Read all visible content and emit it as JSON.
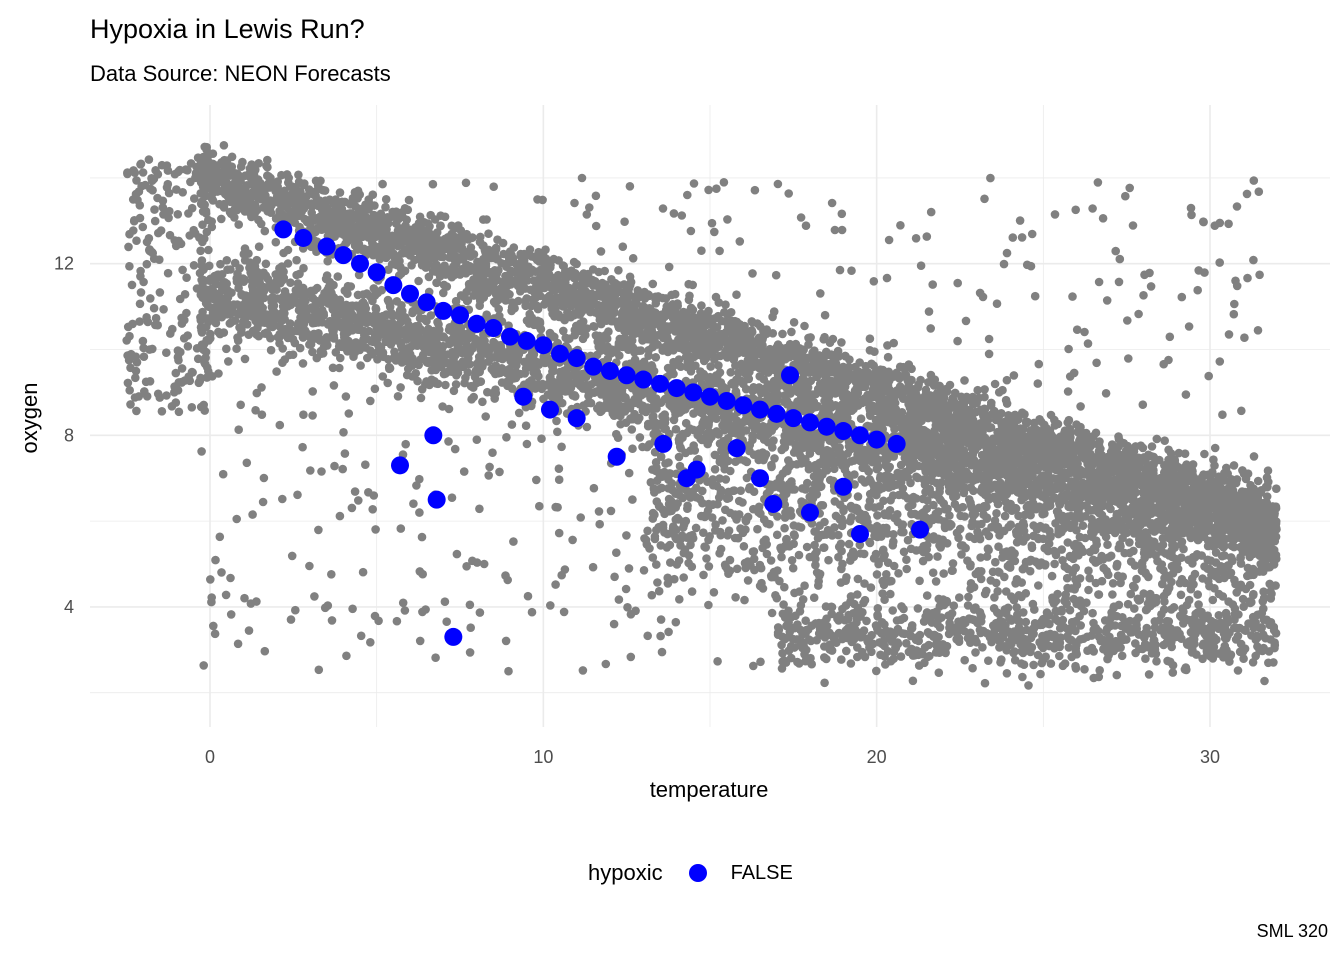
{
  "chart_data": {
    "type": "scatter",
    "title": "Hypoxia in Lewis Run?",
    "subtitle": "Data Source: NEON Forecasts",
    "xlabel": "temperature",
    "ylabel": "oxygen",
    "xlim": [
      -3.6,
      33.6
    ],
    "ylim": [
      1.2,
      15.7
    ],
    "x_ticks": [
      0,
      10,
      20,
      30
    ],
    "y_ticks": [
      4,
      8,
      12
    ],
    "grid": true,
    "legend_position": "bottom",
    "legend_title": "hypoxic",
    "caption": "SML 320",
    "colors": {
      "background_points": "#808080",
      "highlight_points": "#0000ff",
      "grid": "#ebebeb"
    },
    "series": [
      {
        "name": "FALSE",
        "color": "#0000ff",
        "x": [
          2.2,
          2.8,
          3.5,
          4.0,
          4.5,
          5.0,
          5.5,
          6.0,
          6.5,
          7.0,
          7.5,
          8.0,
          8.5,
          9.0,
          9.5,
          10.0,
          10.5,
          11.0,
          11.5,
          12.0,
          12.5,
          13.0,
          13.5,
          14.0,
          14.5,
          15.0,
          15.5,
          16.0,
          16.5,
          17.0,
          17.5,
          18.0,
          18.5,
          19.0,
          19.5,
          20.0,
          20.6,
          5.7,
          6.7,
          6.8,
          7.3,
          9.4,
          10.2,
          11.0,
          12.2,
          13.6,
          14.3,
          14.6,
          15.8,
          16.5,
          16.9,
          18.0,
          19.0,
          19.5,
          21.3,
          17.4
        ],
        "y": [
          12.8,
          12.6,
          12.4,
          12.2,
          12.0,
          11.8,
          11.5,
          11.3,
          11.1,
          10.9,
          10.8,
          10.6,
          10.5,
          10.3,
          10.2,
          10.1,
          9.9,
          9.8,
          9.6,
          9.5,
          9.4,
          9.3,
          9.2,
          9.1,
          9.0,
          8.9,
          8.8,
          8.7,
          8.6,
          8.5,
          8.4,
          8.3,
          8.2,
          8.1,
          8.0,
          7.9,
          7.8,
          7.3,
          8.0,
          6.5,
          3.3,
          8.9,
          8.6,
          8.4,
          7.5,
          7.8,
          7.0,
          7.2,
          7.7,
          7.0,
          6.4,
          6.2,
          6.8,
          5.7,
          5.8,
          9.4
        ]
      }
    ]
  }
}
